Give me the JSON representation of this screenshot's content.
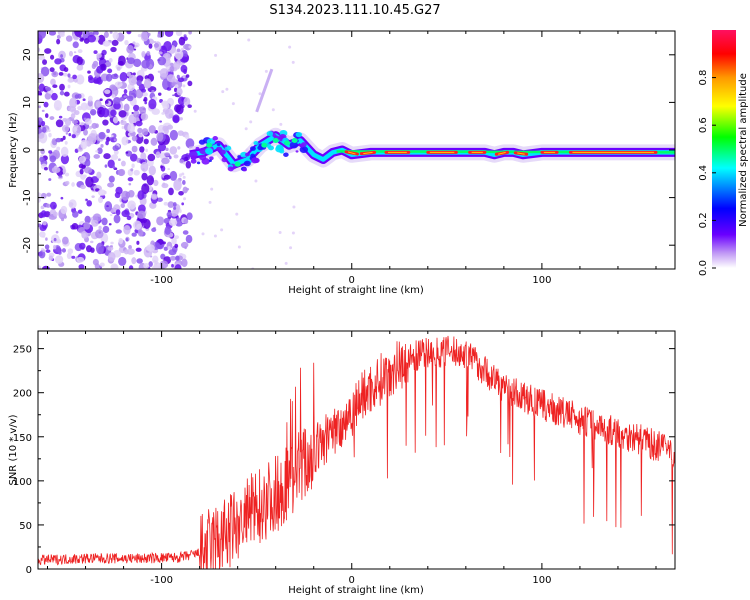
{
  "title": "S134.2023.111.10.45.G27",
  "chart_data": [
    {
      "type": "heatmap",
      "xlabel": "Height of straight line (km)",
      "ylabel": "Frequency (Hz)",
      "xlim": [
        -165,
        170
      ],
      "ylim": [
        -25,
        25
      ],
      "xticks": [
        -100,
        0,
        100
      ],
      "yticks": [
        -20,
        -10,
        0,
        10,
        20
      ],
      "colorbar": {
        "label": "Normalized spectral amplitude",
        "range": [
          0,
          1
        ],
        "ticks": [
          "0.0",
          "0.2",
          "0.4",
          "0.6",
          "0.8"
        ],
        "stops": [
          "#ffffff",
          "#c39df5",
          "#6a00ff",
          "#0000ff",
          "#00ffff",
          "#00ff00",
          "#ffff00",
          "#ff9900",
          "#ff0000",
          "#ff1060"
        ]
      },
      "ridge": {
        "x": [
          -85,
          -78,
          -70,
          -62,
          -55,
          -48,
          -40,
          -33,
          -27,
          -20,
          -15,
          -10,
          -5,
          0,
          10,
          20,
          40,
          60,
          70,
          75,
          80,
          85,
          90,
          100,
          120,
          140,
          170
        ],
        "freq": [
          -1,
          -0.5,
          1,
          -3,
          -2,
          1,
          3,
          1,
          2,
          -1,
          -2,
          -0.5,
          0,
          -1,
          -0.5,
          -0.5,
          -0.5,
          -0.5,
          -0.5,
          -1,
          -0.5,
          -0.5,
          -1,
          -0.5,
          -0.5,
          -0.5,
          -0.5
        ]
      }
    },
    {
      "type": "line",
      "xlabel": "Height of straight line (km)",
      "ylabel": "SNR (10 * v/v)",
      "xlim": [
        -165,
        170
      ],
      "ylim": [
        0,
        270
      ],
      "xticks": [
        -100,
        0,
        100
      ],
      "yticks": [
        0,
        50,
        100,
        150,
        200,
        250
      ],
      "color": "#ee2222",
      "series": [
        {
          "name": "SNR",
          "x": [
            -165,
            -140,
            -110,
            -90,
            -80,
            -75,
            -70,
            -65,
            -60,
            -55,
            -50,
            -45,
            -40,
            -35,
            -30,
            -25,
            -20,
            -15,
            -10,
            -5,
            0,
            5,
            10,
            15,
            20,
            25,
            30,
            35,
            40,
            45,
            50,
            55,
            60,
            65,
            70,
            75,
            80,
            90,
            100,
            110,
            120,
            130,
            140,
            150,
            160,
            170
          ],
          "values": [
            10,
            12,
            12,
            13,
            18,
            25,
            33,
            40,
            50,
            60,
            70,
            78,
            85,
            95,
            110,
            120,
            130,
            145,
            155,
            165,
            180,
            195,
            205,
            215,
            225,
            232,
            238,
            243,
            245,
            246,
            247,
            246,
            243,
            235,
            225,
            215,
            205,
            195,
            186,
            178,
            170,
            162,
            155,
            148,
            140,
            133
          ]
        }
      ]
    }
  ]
}
